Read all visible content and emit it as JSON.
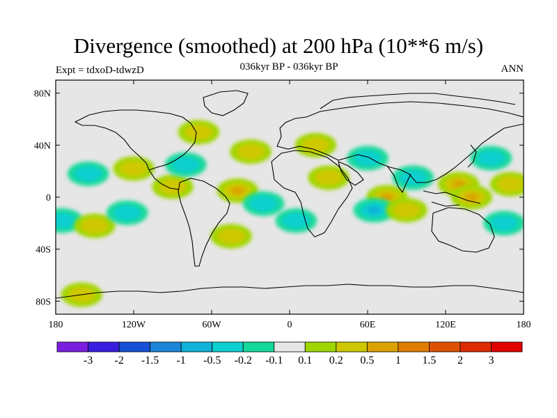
{
  "header": {
    "title": "Divergence (smoothed) at 200 hPa (10**6 m/s)",
    "subtitle": "036kyr BP - 036kyr BP",
    "experiment": "Expt = tdxoD-tdwzD",
    "season": "ANN"
  },
  "map": {
    "projection": "cylindrical equidistant",
    "lon_range": [
      -180,
      180
    ],
    "lat_range": [
      -90,
      90
    ],
    "background_color": "#e6e6e6",
    "x_ticks": [
      "180",
      "120W",
      "60W",
      "0",
      "60E",
      "120E",
      "180"
    ],
    "y_ticks": [
      "80N",
      "40N",
      "0",
      "40S",
      "80S"
    ]
  },
  "colorbar": {
    "labels": [
      "-3",
      "-2",
      "-1.5",
      "-1",
      "-0.5",
      "-0.2",
      "-0.1",
      "0.1",
      "0.2",
      "0.5",
      "1",
      "1.5",
      "2",
      "3"
    ],
    "colors": [
      "#7a1fe0",
      "#3a1ee0",
      "#1750d6",
      "#1c86d8",
      "#11b2d8",
      "#0ccfcf",
      "#13d99a",
      "#e6e6e6",
      "#a0d600",
      "#cfc800",
      "#dba200",
      "#df7d00",
      "#dd5200",
      "#dd2a00",
      "#e00000"
    ]
  },
  "chart_data": {
    "type": "heatmap",
    "title": "Divergence (smoothed) at 200 hPa (10**6 m/s)",
    "subtitle": "036kyr BP - 036kyr BP",
    "levels": [
      -3,
      -2,
      -1.5,
      -1,
      -0.5,
      -0.2,
      -0.1,
      0.1,
      0.2,
      0.5,
      1,
      1.5,
      2,
      3
    ],
    "xlim": [
      -180,
      180
    ],
    "ylim": [
      -90,
      90
    ],
    "anomaly_regions": [
      {
        "lon": -155,
        "lat": 18,
        "value": -0.3
      },
      {
        "lon": -175,
        "lat": -18,
        "value": -0.3
      },
      {
        "lon": -150,
        "lat": -22,
        "value": 0.3
      },
      {
        "lon": -120,
        "lat": 22,
        "value": 0.3
      },
      {
        "lon": -90,
        "lat": 8,
        "value": 0.3
      },
      {
        "lon": -125,
        "lat": -12,
        "value": -0.3
      },
      {
        "lon": -80,
        "lat": 25,
        "value": -0.3
      },
      {
        "lon": -70,
        "lat": 50,
        "value": 0.3
      },
      {
        "lon": -40,
        "lat": 5,
        "value": 0.6
      },
      {
        "lon": -20,
        "lat": -5,
        "value": -0.3
      },
      {
        "lon": -45,
        "lat": -30,
        "value": 0.3
      },
      {
        "lon": -30,
        "lat": 35,
        "value": 0.3
      },
      {
        "lon": 20,
        "lat": 40,
        "value": 0.3
      },
      {
        "lon": 30,
        "lat": 15,
        "value": 0.3
      },
      {
        "lon": 5,
        "lat": -18,
        "value": -0.3
      },
      {
        "lon": 60,
        "lat": 30,
        "value": -0.3
      },
      {
        "lon": 75,
        "lat": 0,
        "value": 0.6
      },
      {
        "lon": 65,
        "lat": -10,
        "value": -0.6
      },
      {
        "lon": 90,
        "lat": -10,
        "value": 0.3
      },
      {
        "lon": 95,
        "lat": 15,
        "value": -0.3
      },
      {
        "lon": 130,
        "lat": 10,
        "value": 0.6
      },
      {
        "lon": 140,
        "lat": 0,
        "value": 0.8
      },
      {
        "lon": 155,
        "lat": 30,
        "value": -0.3
      },
      {
        "lon": 165,
        "lat": -20,
        "value": -0.3
      },
      {
        "lon": 170,
        "lat": 10,
        "value": 0.3
      },
      {
        "lon": -160,
        "lat": -75,
        "value": 0.3
      }
    ]
  }
}
